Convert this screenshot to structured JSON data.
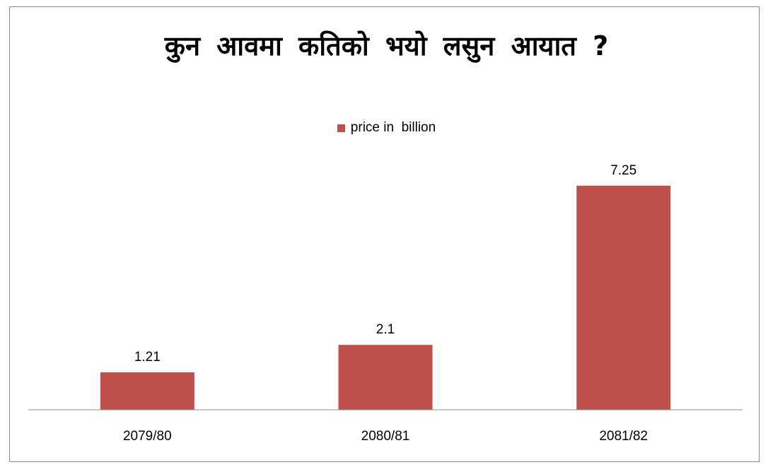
{
  "chart_data": {
    "type": "bar",
    "title": "कुन आवमा कतिको भयो लसुन आयात ?",
    "categories": [
      "2079/80",
      "2080/81",
      "2081/82"
    ],
    "series": [
      {
        "name": "price in  billion",
        "values": [
          1.21,
          2.1,
          7.25
        ],
        "color": "#c0504d"
      }
    ],
    "data_labels": [
      "1.21",
      "2.1",
      "7.25"
    ],
    "xlabel": "",
    "ylabel": "",
    "ylim": [
      0,
      8
    ],
    "grid": false,
    "legend_position": "top"
  }
}
